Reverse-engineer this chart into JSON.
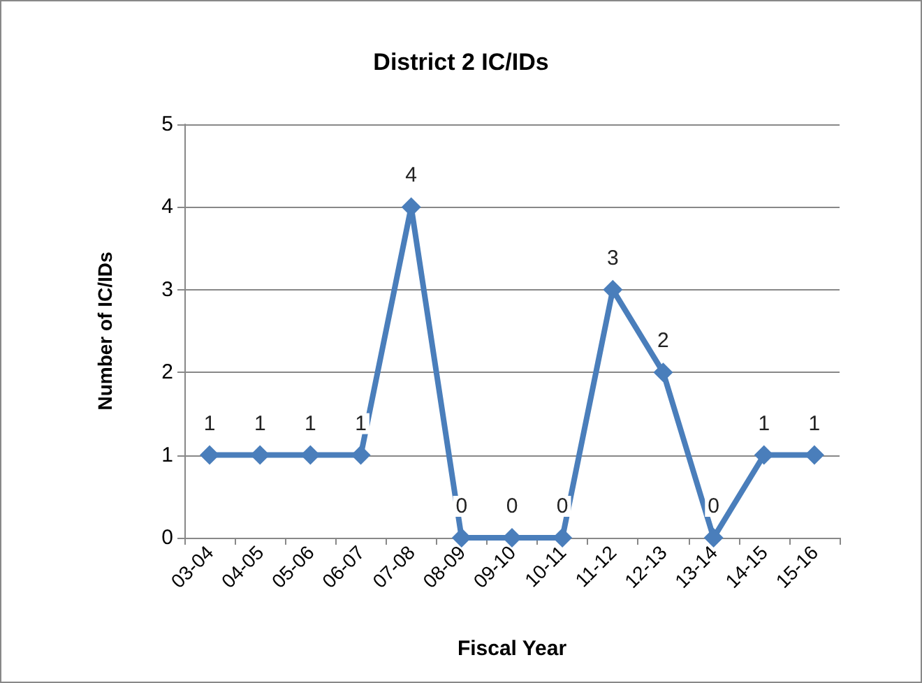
{
  "chart_data": {
    "type": "line",
    "title": "District 2 IC/IDs",
    "xlabel": "Fiscal Year",
    "ylabel": "Number of IC/IDs",
    "categories": [
      "03-04",
      "04-05",
      "05-06",
      "06-07",
      "07-08",
      "08-09",
      "09-10",
      "10-11",
      "11-12",
      "12-13",
      "13-14",
      "14-15",
      "15-16"
    ],
    "series": [
      {
        "color": "#4a7ebb",
        "values": [
          1,
          1,
          1,
          1,
          4,
          0,
          0,
          0,
          3,
          2,
          0,
          1,
          1
        ]
      }
    ],
    "ylim": [
      0,
      5
    ],
    "yticks": [
      0,
      1,
      2,
      3,
      4,
      5
    ],
    "grid": "y",
    "marker": "diamond",
    "line_style": "solid",
    "data_labels": true
  }
}
